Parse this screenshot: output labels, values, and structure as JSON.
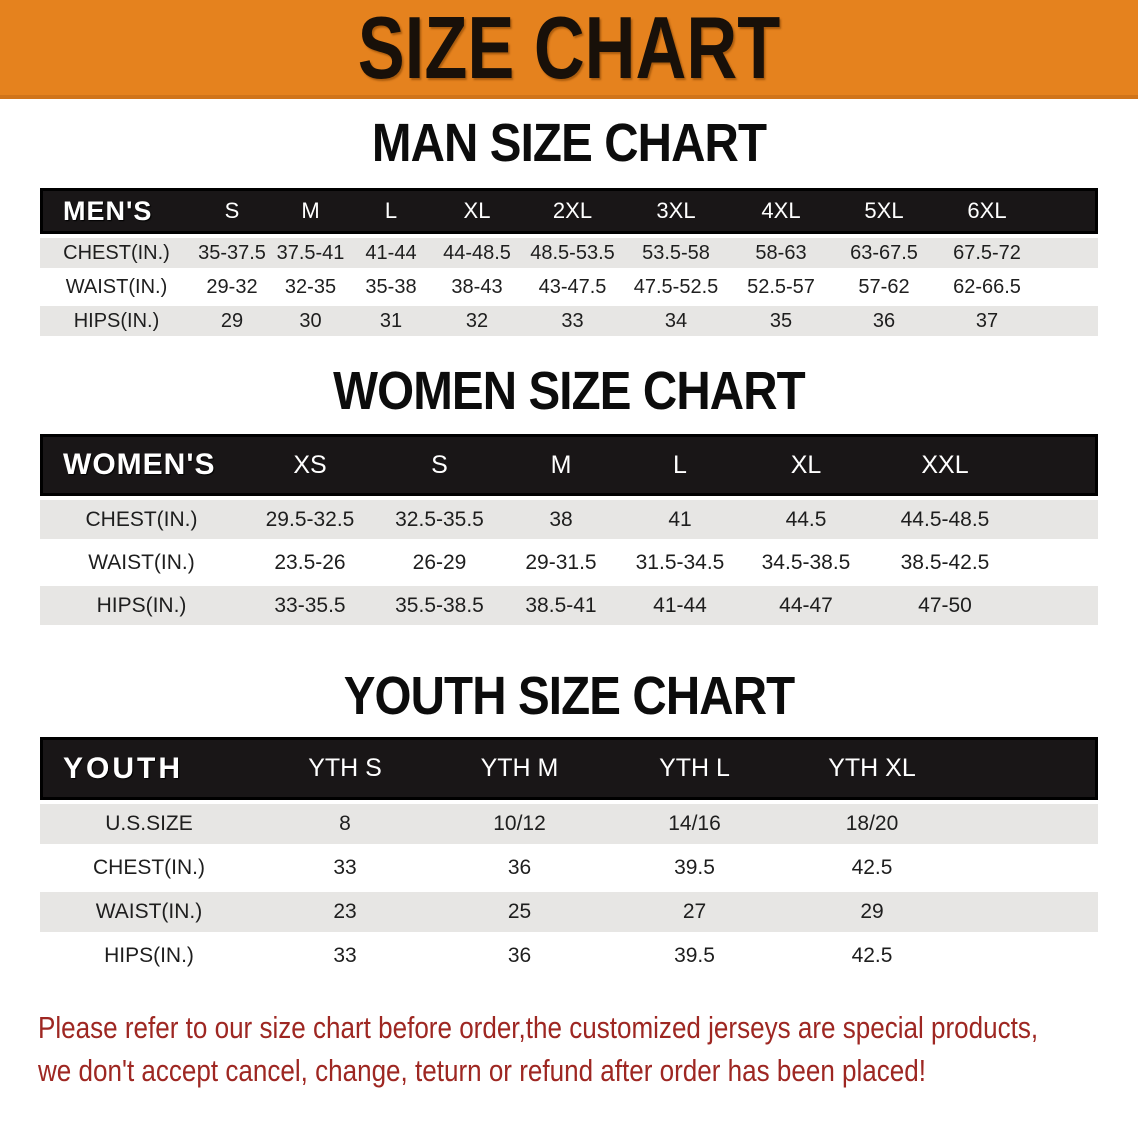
{
  "banner": {
    "title": "SIZE CHART"
  },
  "colors": {
    "banner_bg": "#e5821e",
    "table_header_bar": "#191617",
    "row_stripe": "#e7e6e4",
    "footer_text": "#9e2722"
  },
  "sections": [
    {
      "heading": "MAN SIZE CHART",
      "table": {
        "label": "MEN'S",
        "columns": [
          "S",
          "M",
          "L",
          "XL",
          "2XL",
          "3XL",
          "4XL",
          "5XL",
          "6XL"
        ],
        "rows": [
          {
            "label": "CHEST(IN.)",
            "values": [
              "35-37.5",
              "37.5-41",
              "41-44",
              "44-48.5",
              "48.5-53.5",
              "53.5-58",
              "58-63",
              "63-67.5",
              "67.5-72"
            ]
          },
          {
            "label": "WAIST(IN.)",
            "values": [
              "29-32",
              "32-35",
              "35-38",
              "38-43",
              "43-47.5",
              "47.5-52.5",
              "52.5-57",
              "57-62",
              "62-66.5"
            ]
          },
          {
            "label": "HIPS(IN.)",
            "values": [
              "29",
              "30",
              "31",
              "32",
              "33",
              "34",
              "35",
              "36",
              "37"
            ]
          }
        ]
      }
    },
    {
      "heading": "WOMEN SIZE CHART",
      "table": {
        "label": "WOMEN'S",
        "columns": [
          "XS",
          "S",
          "M",
          "L",
          "XL",
          "XXL"
        ],
        "rows": [
          {
            "label": "CHEST(IN.)",
            "values": [
              "29.5-32.5",
              "32.5-35.5",
              "38",
              "41",
              "44.5",
              "44.5-48.5"
            ]
          },
          {
            "label": "WAIST(IN.)",
            "values": [
              "23.5-26",
              "26-29",
              "29-31.5",
              "31.5-34.5",
              "34.5-38.5",
              "38.5-42.5"
            ]
          },
          {
            "label": "HIPS(IN.)",
            "values": [
              "33-35.5",
              "35.5-38.5",
              "38.5-41",
              "41-44",
              "44-47",
              "47-50"
            ]
          }
        ]
      }
    },
    {
      "heading": "YOUTH SIZE CHART",
      "table": {
        "label": "YOUTH",
        "columns": [
          "YTH S",
          "YTH M",
          "YTH L",
          "YTH XL"
        ],
        "rows": [
          {
            "label": "U.S.SIZE",
            "values": [
              "8",
              "10/12",
              "14/16",
              "18/20"
            ]
          },
          {
            "label": "CHEST(IN.)",
            "values": [
              "33",
              "36",
              "39.5",
              "42.5"
            ]
          },
          {
            "label": "WAIST(IN.)",
            "values": [
              "23",
              "25",
              "27",
              "29"
            ]
          },
          {
            "label": "HIPS(IN.)",
            "values": [
              "33",
              "36",
              "39.5",
              "42.5"
            ]
          }
        ]
      }
    }
  ],
  "footer": {
    "line1": "Please refer to our size chart before order,the customized jerseys are special products,",
    "line2": "we don't accept cancel, change, teturn or refund after order has been placed!"
  }
}
